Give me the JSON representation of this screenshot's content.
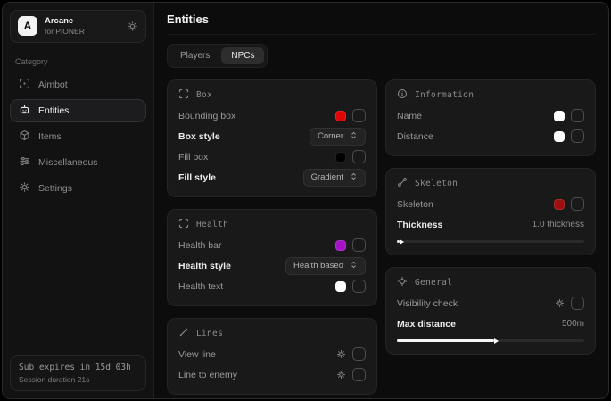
{
  "sidebar": {
    "brand": {
      "letter": "A",
      "name": "Arcane",
      "subtitle": "for PIONER"
    },
    "category_label": "Category",
    "items": [
      {
        "label": "Aimbot",
        "icon": "crosshair-icon"
      },
      {
        "label": "Entities",
        "icon": "bot-icon"
      },
      {
        "label": "Items",
        "icon": "package-icon"
      },
      {
        "label": "Miscellaneous",
        "icon": "sliders-icon"
      },
      {
        "label": "Settings",
        "icon": "gear-icon"
      }
    ],
    "active_item": "Entities",
    "footer": {
      "line1": "Sub expires in 15d 03h",
      "line2": "Session duration 21s"
    }
  },
  "main": {
    "title": "Entities",
    "tabs": [
      {
        "label": "Players"
      },
      {
        "label": "NPCs"
      }
    ],
    "active_tab": "NPCs"
  },
  "cards": {
    "box": {
      "title": "Box",
      "rows": [
        {
          "label": "Bounding box",
          "swatch": "#e00505"
        },
        {
          "label": "Box style",
          "value": "Corner"
        },
        {
          "label": "Fill box",
          "swatch": "#000000"
        },
        {
          "label": "Fill style",
          "value": "Gradient"
        }
      ]
    },
    "health": {
      "title": "Health",
      "rows": [
        {
          "label": "Health bar",
          "swatch": "#a312c4"
        },
        {
          "label": "Health style",
          "value": "Health based"
        },
        {
          "label": "Health text",
          "swatch": "#ffffff"
        }
      ]
    },
    "lines": {
      "title": "Lines",
      "rows": [
        {
          "label": "View line"
        },
        {
          "label": "Line to enemy"
        }
      ]
    },
    "information": {
      "title": "Information",
      "rows": [
        {
          "label": "Name",
          "swatch": "#ffffff"
        },
        {
          "label": "Distance",
          "swatch": "#ffffff"
        }
      ]
    },
    "skeleton": {
      "title": "Skeleton",
      "rows": [
        {
          "label": "Skeleton",
          "swatch": "#9b0f0f"
        }
      ],
      "slider": {
        "label": "Thickness",
        "value": "1.0 thickness",
        "fill_percent": "1.5%"
      }
    },
    "general": {
      "title": "General",
      "rows": [
        {
          "label": "Visibility check"
        }
      ],
      "slider": {
        "label": "Max distance",
        "value": "500m",
        "fill_percent": "52%"
      }
    }
  },
  "colors": {
    "accent_red": "#e00505",
    "accent_purple": "#a312c4",
    "dark_red": "#9b0f0f",
    "card_bg": "#191919",
    "sidebar_bg": "#121212"
  }
}
